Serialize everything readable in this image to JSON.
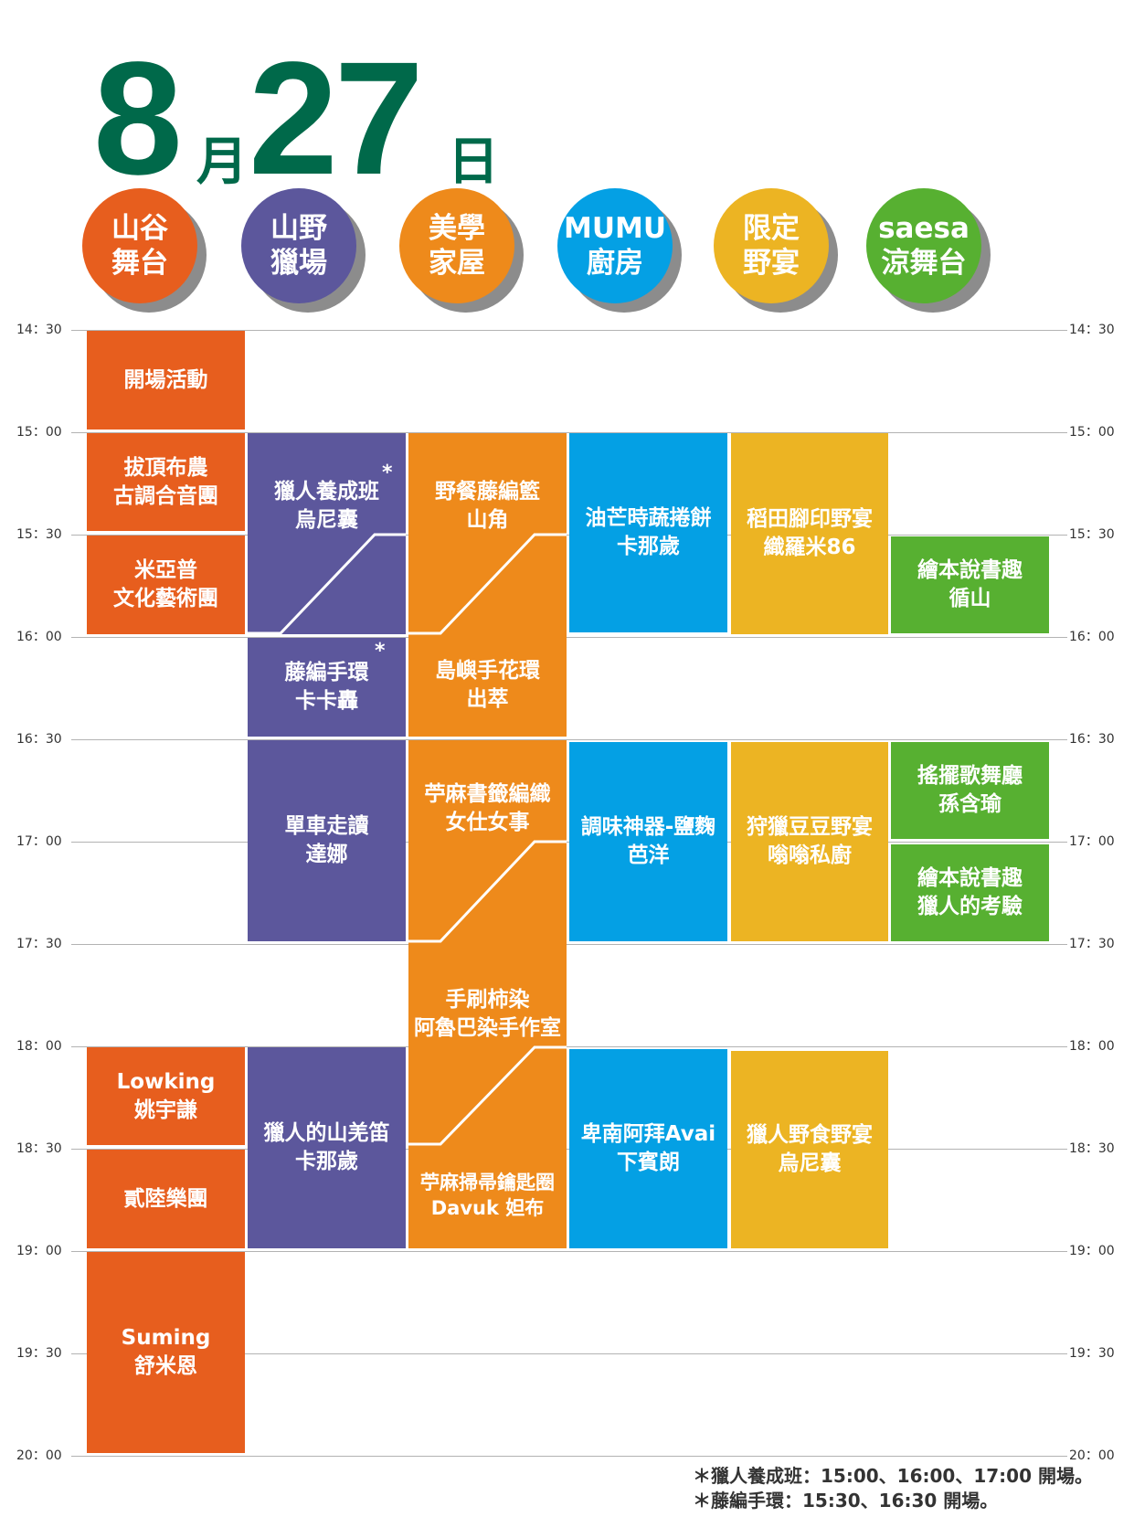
{
  "header": {
    "month": "8",
    "month_unit": "月",
    "day": "27",
    "day_unit": "日"
  },
  "stages": [
    {
      "line1": "山谷",
      "line2": "舞台",
      "color": "#e75e1e"
    },
    {
      "line1": "山野",
      "line2": "獵場",
      "color": "#5c579c"
    },
    {
      "line1": "美學",
      "line2": "家屋",
      "color": "#ee8a1b"
    },
    {
      "line1": "MUMU",
      "line2": "廚房",
      "color": "#04a0e4"
    },
    {
      "line1": "限定",
      "line2": "野宴",
      "color": "#ecb423"
    },
    {
      "line1": "saesa",
      "line2": "涼舞台",
      "color": "#57b031"
    }
  ],
  "times": [
    "14：30",
    "15：00",
    "15：30",
    "16：00",
    "16：30",
    "17：00",
    "17：30",
    "18：00",
    "18：30",
    "19：00",
    "19：30",
    "20：00"
  ],
  "events": {
    "valley": [
      {
        "line1": "開場活動",
        "line2": ""
      },
      {
        "line1": "拔頂布農",
        "line2": "古調合音團"
      },
      {
        "line1": "米亞普",
        "line2": "文化藝術團"
      },
      {
        "line1": "Lowking",
        "line2": "姚宇謙"
      },
      {
        "line1": "貳陸樂團",
        "line2": ""
      },
      {
        "line1": "Suming",
        "line2": "舒米恩"
      }
    ],
    "hunt": [
      {
        "line1": "獵人養成班",
        "line2": "烏尼囊",
        "star": "*"
      },
      {
        "line1": "藤編手環",
        "line2": "卡卡轟",
        "star": "*"
      },
      {
        "line1": "單車走讀",
        "line2": "達娜"
      },
      {
        "line1": "獵人的山羌笛",
        "line2": "卡那歲"
      }
    ],
    "house": [
      {
        "line1": "野餐藤編籃",
        "line2": "山角"
      },
      {
        "line1": "島嶼手花環",
        "line2": "出萃"
      },
      {
        "line1": "苧麻書籤編織",
        "line2": "女仕女事"
      },
      {
        "line1": "手刷柿染",
        "line2": "阿魯巴染手作室"
      },
      {
        "line1": "苧麻掃帚鑰匙圈",
        "line2": "Davuk 妲布"
      }
    ],
    "kitchen": [
      {
        "line1": "油芒時蔬捲餅",
        "line2": "卡那歲"
      },
      {
        "line1": "調味神器-鹽麴",
        "line2": "芭洋"
      },
      {
        "line1": "卑南阿拜Avai",
        "line2": "下賓朗"
      }
    ],
    "feast": [
      {
        "line1": "稻田腳印野宴",
        "line2": "織羅米86"
      },
      {
        "line1": "狩獵豆豆野宴",
        "line2": "嗡嗡私廚"
      },
      {
        "line1": "獵人野食野宴",
        "line2": "烏尼囊"
      }
    ],
    "saesa": [
      {
        "line1": "繪本說書趣",
        "line2": "循山"
      },
      {
        "line1": "搖擺歌舞廳",
        "line2": "孫含瑜"
      },
      {
        "line1": "繪本說書趣",
        "line2": "獵人的考驗"
      }
    ]
  },
  "notes": [
    "＊獵人養成班：15:00、16:00、17:00 開場。",
    "＊藤編手環：15:30、16:30 開場。"
  ]
}
